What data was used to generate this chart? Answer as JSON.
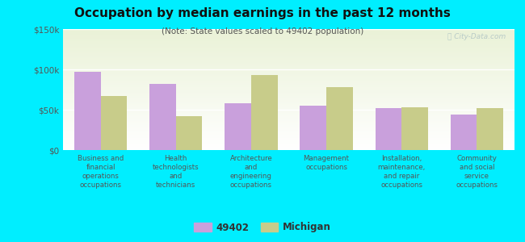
{
  "title": "Occupation by median earnings in the past 12 months",
  "subtitle": "(Note: State values scaled to 49402 population)",
  "categories": [
    "Business and\nfinancial\noperations\noccupations",
    "Health\ntechnologists\nand\ntechnicians",
    "Architecture\nand\nengineering\noccupations",
    "Management\noccupations",
    "Installation,\nmaintenance,\nand repair\noccupations",
    "Community\nand social\nservice\noccupations"
  ],
  "values_49402": [
    97000,
    82000,
    58000,
    55000,
    52000,
    44000
  ],
  "values_michigan": [
    67000,
    42000,
    93000,
    78000,
    53000,
    52000
  ],
  "color_49402": "#c9a0dc",
  "color_michigan": "#c8cc8a",
  "background_outer": "#00eeff",
  "ylim": [
    0,
    150000
  ],
  "yticks": [
    0,
    50000,
    100000,
    150000
  ],
  "ytick_labels": [
    "$0",
    "$50k",
    "$100k",
    "$150k"
  ],
  "legend_label_49402": "49402",
  "legend_label_michigan": "Michigan",
  "watermark": "ⓘ City-Data.com",
  "bar_width": 0.35
}
